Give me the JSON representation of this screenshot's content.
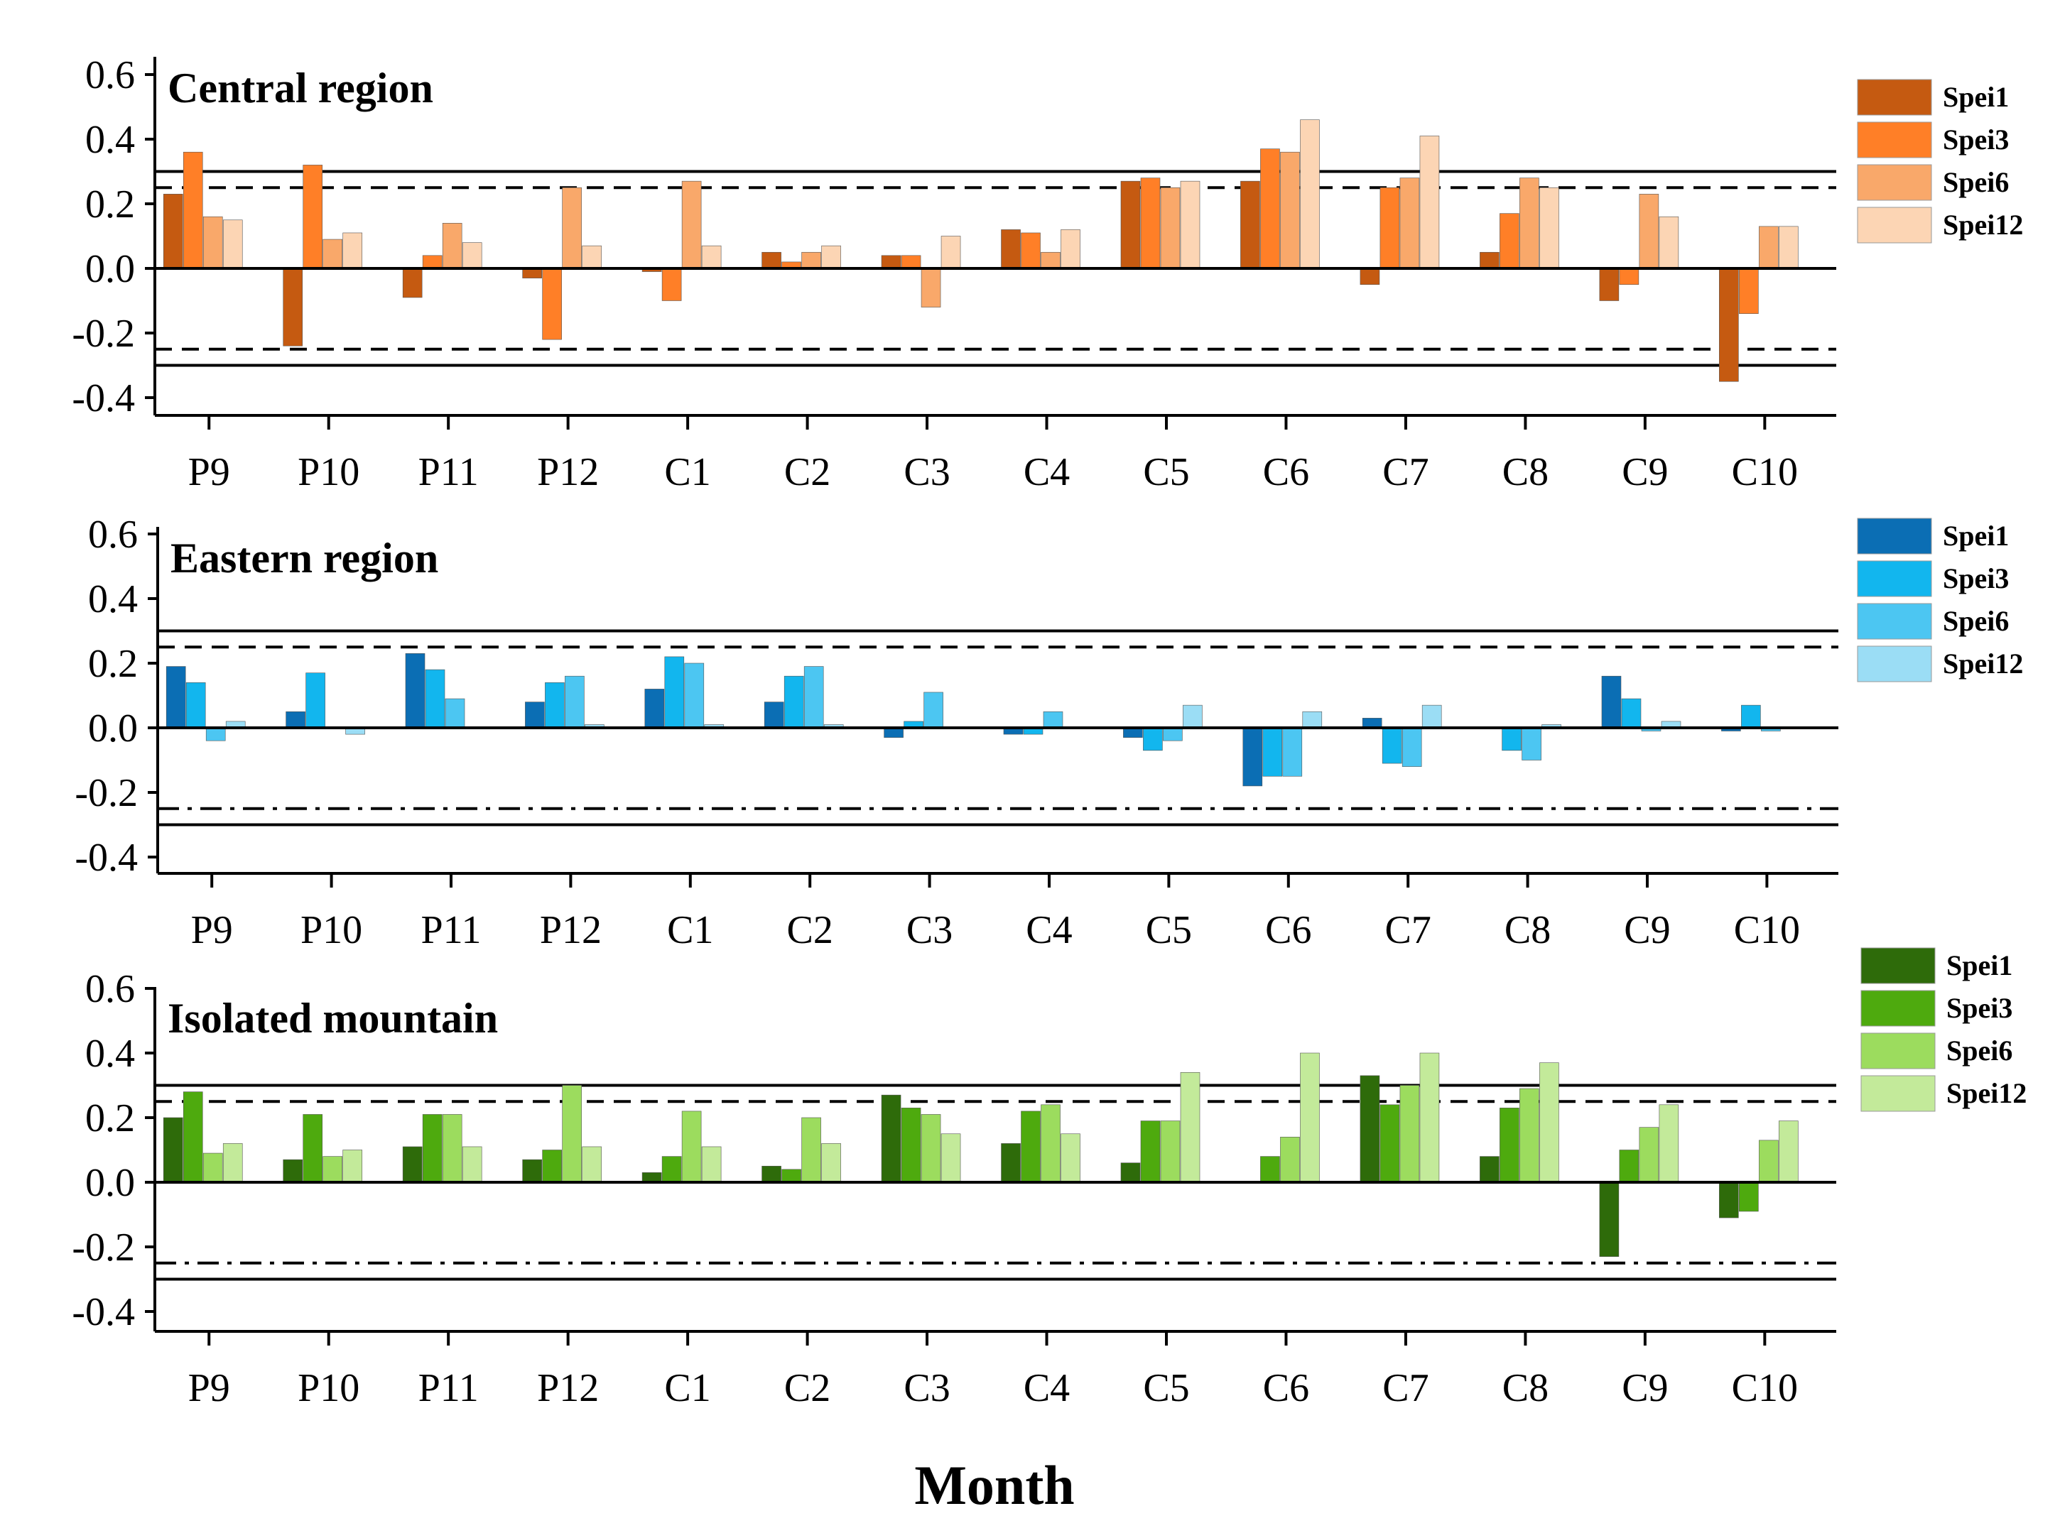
{
  "chart_data": [
    {
      "type": "bar",
      "title": "Central region",
      "xlabel": "Month",
      "ylabel": "",
      "ylim": [
        -0.45,
        0.6
      ],
      "yticks": [
        "0.6",
        "0.4",
        "0.2",
        "0.0",
        "-0.2",
        "-0.4"
      ],
      "ytick_values": [
        0.6,
        0.4,
        0.2,
        0.0,
        -0.2,
        -0.4
      ],
      "categories": [
        "P9",
        "P10",
        "P11",
        "P12",
        "C1",
        "C2",
        "C3",
        "C4",
        "C5",
        "C6",
        "C7",
        "C8",
        "C9",
        "C10"
      ],
      "reference_lines": [
        {
          "value": 0.3,
          "style": "solid"
        },
        {
          "value": 0.25,
          "style": "dashed"
        },
        {
          "value": 0.0,
          "style": "solid"
        },
        {
          "value": -0.25,
          "style": "dashed"
        },
        {
          "value": -0.3,
          "style": "solid"
        }
      ],
      "legend_position": "right",
      "series": [
        {
          "name": "Spei1",
          "color": "#C55A11",
          "values": [
            0.23,
            -0.24,
            -0.09,
            -0.03,
            -0.01,
            0.05,
            0.04,
            0.12,
            0.27,
            0.27,
            -0.05,
            0.05,
            -0.1,
            -0.35
          ]
        },
        {
          "name": "Spei3",
          "color": "#FF7F27",
          "values": [
            0.36,
            0.32,
            0.04,
            -0.22,
            -0.1,
            0.02,
            0.04,
            0.11,
            0.28,
            0.37,
            0.25,
            0.17,
            -0.05,
            -0.14
          ]
        },
        {
          "name": "Spei6",
          "color": "#F9A86A",
          "values": [
            0.16,
            0.09,
            0.14,
            0.25,
            0.27,
            0.05,
            -0.12,
            0.05,
            0.25,
            0.36,
            0.28,
            0.28,
            0.23,
            0.13
          ]
        },
        {
          "name": "Spei12",
          "color": "#FCD5B4",
          "values": [
            0.15,
            0.11,
            0.08,
            0.07,
            0.07,
            0.07,
            0.1,
            0.12,
            0.27,
            0.46,
            0.41,
            0.25,
            0.16,
            0.13
          ]
        }
      ]
    },
    {
      "type": "bar",
      "title": "Eastern region",
      "xlabel": "Month",
      "ylabel": "",
      "ylim": [
        -0.45,
        0.6
      ],
      "yticks": [
        "0.6",
        "0.4",
        "0.2",
        "0.0",
        "-0.2",
        "-0.4"
      ],
      "ytick_values": [
        0.6,
        0.4,
        0.2,
        0.0,
        -0.2,
        -0.4
      ],
      "categories": [
        "P9",
        "P10",
        "P11",
        "P12",
        "C1",
        "C2",
        "C3",
        "C4",
        "C5",
        "C6",
        "C7",
        "C8",
        "C9",
        "C10"
      ],
      "reference_lines": [
        {
          "value": 0.3,
          "style": "solid"
        },
        {
          "value": 0.25,
          "style": "dashed"
        },
        {
          "value": 0.0,
          "style": "solid"
        },
        {
          "value": -0.25,
          "style": "dashdot"
        },
        {
          "value": -0.3,
          "style": "solid"
        }
      ],
      "legend_position": "right",
      "series": [
        {
          "name": "Spei1",
          "color": "#0B6EB4",
          "values": [
            0.19,
            0.05,
            0.23,
            0.08,
            0.12,
            0.08,
            -0.03,
            -0.02,
            -0.03,
            -0.18,
            0.03,
            0.0,
            0.16,
            -0.01
          ]
        },
        {
          "name": "Spei3",
          "color": "#12B6EE",
          "values": [
            0.14,
            0.17,
            0.18,
            0.14,
            0.22,
            0.16,
            0.02,
            -0.02,
            -0.07,
            -0.15,
            -0.11,
            -0.07,
            0.09,
            0.07
          ]
        },
        {
          "name": "Spei6",
          "color": "#4CC6F2",
          "values": [
            -0.04,
            0.0,
            0.09,
            0.16,
            0.2,
            0.19,
            0.11,
            0.05,
            -0.04,
            -0.15,
            -0.12,
            -0.1,
            -0.01,
            -0.01
          ]
        },
        {
          "name": "Spei12",
          "color": "#9BDDF5",
          "values": [
            0.02,
            -0.02,
            0.0,
            0.01,
            0.01,
            0.01,
            0.0,
            0.0,
            0.07,
            0.05,
            0.07,
            0.01,
            0.02,
            0.0
          ]
        }
      ]
    },
    {
      "type": "bar",
      "title": "Isolated mountain",
      "xlabel": "Month",
      "ylabel": "",
      "ylim": [
        -0.45,
        0.6
      ],
      "yticks": [
        "0.6",
        "0.4",
        "0.2",
        "0.0",
        "-0.2",
        "-0.4"
      ],
      "ytick_values": [
        0.6,
        0.4,
        0.2,
        0.0,
        -0.2,
        -0.4
      ],
      "categories": [
        "P9",
        "P10",
        "P11",
        "P12",
        "C1",
        "C2",
        "C3",
        "C4",
        "C5",
        "C6",
        "C7",
        "C8",
        "C9",
        "C10"
      ],
      "reference_lines": [
        {
          "value": 0.3,
          "style": "solid"
        },
        {
          "value": 0.25,
          "style": "dashed"
        },
        {
          "value": 0.0,
          "style": "solid"
        },
        {
          "value": -0.25,
          "style": "dashdot"
        },
        {
          "value": -0.3,
          "style": "solid"
        }
      ],
      "legend_position": "right",
      "series": [
        {
          "name": "Spei1",
          "color": "#2E6B0A",
          "values": [
            0.2,
            0.07,
            0.11,
            0.07,
            0.03,
            0.05,
            0.27,
            0.12,
            0.06,
            0.0,
            0.33,
            0.08,
            -0.23,
            -0.11
          ]
        },
        {
          "name": "Spei3",
          "color": "#4EAA0E",
          "values": [
            0.28,
            0.21,
            0.21,
            0.1,
            0.08,
            0.04,
            0.23,
            0.22,
            0.19,
            0.08,
            0.24,
            0.23,
            0.1,
            -0.09
          ]
        },
        {
          "name": "Spei6",
          "color": "#9CDC5E",
          "values": [
            0.09,
            0.08,
            0.21,
            0.3,
            0.22,
            0.2,
            0.21,
            0.24,
            0.19,
            0.14,
            0.3,
            0.29,
            0.17,
            0.13
          ]
        },
        {
          "name": "Spei12",
          "color": "#C3EA9A",
          "values": [
            0.12,
            0.1,
            0.11,
            0.11,
            0.11,
            0.12,
            0.15,
            0.15,
            0.34,
            0.4,
            0.4,
            0.37,
            0.24,
            0.19
          ]
        }
      ]
    }
  ],
  "x_axis_title": "Month"
}
